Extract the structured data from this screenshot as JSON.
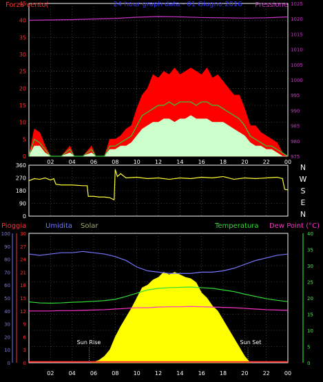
{
  "chart_data": [
    {
      "type": "line",
      "title": "24 hour graph data - 01 Giugno 2016",
      "left_label": "Forza vento(",
      "right_label": "Pressione",
      "x_ticks": [
        "02",
        "04",
        "06",
        "08",
        "10",
        "12",
        "14",
        "16",
        "18",
        "20",
        "22",
        "00"
      ],
      "y_left": {
        "range": [
          0,
          45
        ],
        "ticks": [
          "0",
          "5",
          "10",
          "15",
          "20",
          "25",
          "30",
          "35",
          "40",
          "45"
        ]
      },
      "y_right": {
        "range": [
          975,
          1025
        ],
        "ticks": [
          "975",
          "980",
          "985",
          "990",
          "995",
          "1000",
          "1005",
          "1010",
          "1015",
          "1020",
          "1025"
        ]
      },
      "x_range": [
        0,
        24
      ],
      "colors": {
        "gust": "#ff0000",
        "speed": "#33cc33",
        "avg": "#ccffcc",
        "pressure": "#cc33cc"
      },
      "series": [
        {
          "key": "pressure",
          "x": [
            0,
            2,
            4,
            6,
            8,
            10,
            12,
            14,
            16,
            18,
            20,
            22,
            24
          ],
          "values": [
            1019.5,
            1019.6,
            1019.7,
            1019.9,
            1020.1,
            1020.5,
            1020.7,
            1020.6,
            1020.4,
            1020.3,
            1020.2,
            1020.3,
            1020.6
          ]
        },
        {
          "key": "gust",
          "x": [
            0,
            0.5,
            1,
            1.5,
            2,
            3,
            3.8,
            4.2,
            5,
            5.8,
            6.2,
            7,
            7.5,
            8,
            8.5,
            9,
            9.5,
            10,
            10.5,
            11,
            11.5,
            12,
            12.5,
            13,
            13.5,
            14,
            14.5,
            15,
            15.5,
            16,
            16.5,
            17,
            17.5,
            18,
            18.5,
            19,
            19.5,
            20,
            20.5,
            21,
            21.5,
            22,
            22.5,
            23,
            23.5,
            24
          ],
          "values": [
            0,
            8,
            7,
            3,
            0,
            0,
            3,
            0,
            0,
            3,
            0,
            0,
            5,
            5,
            6,
            8,
            9,
            14,
            18,
            20,
            24,
            23,
            25,
            24,
            26,
            24,
            25,
            26,
            25,
            24,
            26,
            23,
            24,
            22,
            20,
            18,
            18,
            14,
            9,
            9,
            7,
            6,
            5,
            4,
            1,
            0
          ]
        },
        {
          "key": "speed",
          "x": [
            0,
            0.5,
            1,
            1.5,
            2,
            3,
            3.8,
            4.2,
            5,
            5.8,
            6.2,
            7,
            7.5,
            8,
            8.5,
            9,
            9.5,
            10,
            10.5,
            11,
            11.5,
            12,
            12.5,
            13,
            13.5,
            14,
            14.5,
            15,
            15.5,
            16,
            16.5,
            17,
            17.5,
            18,
            18.5,
            19,
            19.5,
            20,
            20.5,
            21,
            21.5,
            22,
            22.5,
            23,
            23.5,
            24
          ],
          "values": [
            0,
            5,
            4,
            2,
            0,
            0,
            2,
            0,
            0,
            2,
            0,
            0,
            3,
            3,
            4,
            5,
            6,
            9,
            12,
            13,
            14,
            15,
            15,
            16,
            15,
            16,
            16,
            16,
            15,
            16,
            16,
            15,
            15,
            14,
            13,
            12,
            11,
            9,
            6,
            5,
            4,
            3,
            3,
            2,
            1,
            0
          ]
        },
        {
          "key": "avg",
          "x": [
            0,
            0.5,
            1,
            1.5,
            2,
            3,
            3.8,
            4.2,
            5,
            5.8,
            6.2,
            7,
            7.5,
            8,
            8.5,
            9,
            9.5,
            10,
            10.5,
            11,
            11.5,
            12,
            12.5,
            13,
            13.5,
            14,
            14.5,
            15,
            15.5,
            16,
            16.5,
            17,
            17.5,
            18,
            18.5,
            19,
            19.5,
            20,
            20.5,
            21,
            21.5,
            22,
            22.5,
            23,
            23.5,
            24
          ],
          "values": [
            0,
            3,
            3,
            1,
            0,
            0,
            1,
            0,
            0,
            1,
            0,
            0,
            2,
            2,
            3,
            3,
            4,
            6,
            8,
            9,
            10,
            10,
            11,
            11,
            10,
            11,
            11,
            12,
            11,
            11,
            11,
            10,
            10,
            10,
            9,
            8,
            7,
            6,
            4,
            3,
            3,
            2,
            2,
            1,
            0,
            0
          ]
        }
      ]
    },
    {
      "type": "line",
      "title": "",
      "y_ticks": [
        "0",
        "90",
        "180",
        "270",
        "360"
      ],
      "y_range": [
        0,
        360
      ],
      "x_range": [
        0,
        24
      ],
      "compass_labels": [
        "N",
        "W",
        "S",
        "E",
        "N"
      ],
      "colors": {
        "direction": "#ffff33"
      },
      "series": [
        {
          "key": "direction",
          "x": [
            0,
            0.5,
            1,
            1.5,
            2,
            2.3,
            2.5,
            3,
            4,
            5,
            5.4,
            5.5,
            6,
            6.5,
            7,
            7.5,
            7.9,
            8.0,
            8.2,
            8.5,
            9,
            10,
            11,
            12,
            13,
            14,
            15,
            16,
            17,
            18,
            19,
            20,
            21,
            22,
            23,
            23.5,
            23.7,
            24
          ],
          "values": [
            250,
            265,
            260,
            270,
            255,
            265,
            225,
            220,
            220,
            215,
            215,
            140,
            140,
            135,
            135,
            130,
            115,
            330,
            280,
            300,
            270,
            275,
            265,
            270,
            260,
            270,
            265,
            275,
            270,
            280,
            260,
            270,
            265,
            270,
            275,
            265,
            190,
            185
          ]
        }
      ]
    },
    {
      "type": "area",
      "title": "",
      "labels": {
        "rain": "Pioggia",
        "humidity": "Umidita",
        "solar": "Solar",
        "temperature": "Temperatura",
        "dew": "Dew Point (°C)"
      },
      "sun_rise": "Sun Rise",
      "sun_set": "Sun Set",
      "x_ticks": [
        "02",
        "04",
        "06",
        "08",
        "10",
        "12",
        "14",
        "16",
        "18",
        "20",
        "22",
        "00"
      ],
      "humidity_ticks": [
        "0",
        "10",
        "20",
        "30",
        "40",
        "50",
        "60",
        "70",
        "80",
        "90",
        "100"
      ],
      "rain_ticks": [
        "0",
        "3",
        "6",
        "9",
        "12",
        "15",
        "18",
        "21",
        "24",
        "27",
        "30"
      ],
      "temp_ticks": [
        "0",
        "5",
        "10",
        "15",
        "20",
        "25",
        "30",
        "35",
        "40"
      ],
      "x_range": [
        0,
        24
      ],
      "colors": {
        "rain": "#ff3333",
        "humidity": "#7777ff",
        "solar": "#ffff00",
        "temperature": "#33dd33",
        "dew": "#ff33cc",
        "temp_axis": "#33ff33"
      },
      "series": [
        {
          "key": "humidity",
          "range": [
            0,
            100
          ],
          "x": [
            0,
            1,
            2,
            3,
            4,
            5,
            6,
            7,
            8,
            9,
            10,
            11,
            12,
            13,
            14,
            15,
            16,
            17,
            18,
            19,
            20,
            21,
            22,
            23,
            24
          ],
          "values": [
            84,
            83,
            84,
            85,
            85,
            86,
            85,
            84,
            82,
            79,
            74,
            71,
            70,
            69,
            69,
            69,
            70,
            70,
            71,
            73,
            76,
            79,
            81,
            83,
            84
          ]
        },
        {
          "key": "temperature",
          "range": [
            0,
            40
          ],
          "x": [
            0,
            1,
            2,
            3,
            4,
            5,
            6,
            7,
            8,
            9,
            10,
            11,
            12,
            13,
            14,
            15,
            16,
            17,
            18,
            19,
            20,
            21,
            22,
            23,
            24
          ],
          "values": [
            18.8,
            18.5,
            18.4,
            18.5,
            18.7,
            18.8,
            19.0,
            19.2,
            19.6,
            20.5,
            21.5,
            22.5,
            23.0,
            23.2,
            23.3,
            23.4,
            23.2,
            23.0,
            22.5,
            22.0,
            21.2,
            20.5,
            19.8,
            19.3,
            18.9
          ]
        },
        {
          "key": "dew",
          "range": [
            0,
            40
          ],
          "x": [
            0,
            1,
            2,
            3,
            4,
            5,
            6,
            7,
            8,
            9,
            10,
            11,
            12,
            13,
            14,
            15,
            16,
            17,
            18,
            19,
            20,
            21,
            22,
            23,
            24
          ],
          "values": [
            16.0,
            16.0,
            16.0,
            16.1,
            16.1,
            16.2,
            16.3,
            16.4,
            16.6,
            16.8,
            17.0,
            17.0,
            17.2,
            17.3,
            17.3,
            17.4,
            17.3,
            17.2,
            17.1,
            17.0,
            16.8,
            16.6,
            16.4,
            16.3,
            16.2
          ]
        },
        {
          "key": "solar",
          "range": [
            0,
            100
          ],
          "x": [
            5.8,
            6.5,
            7,
            7.5,
            8,
            8.5,
            9,
            9.5,
            10,
            10.5,
            11,
            11.5,
            12,
            12.5,
            13,
            13.5,
            14,
            14.5,
            15,
            15.5,
            16,
            16.5,
            17,
            17.5,
            18,
            18.5,
            19,
            19.5,
            20,
            20.5
          ],
          "values": [
            0,
            2,
            5,
            10,
            20,
            28,
            35,
            42,
            50,
            58,
            60,
            64,
            66,
            70,
            68,
            70,
            68,
            66,
            65,
            62,
            54,
            50,
            44,
            40,
            33,
            26,
            19,
            12,
            5,
            0
          ]
        },
        {
          "key": "rain",
          "range": [
            0,
            30
          ],
          "x": [
            0,
            24
          ],
          "values": [
            0.2,
            0.2
          ]
        }
      ]
    }
  ]
}
